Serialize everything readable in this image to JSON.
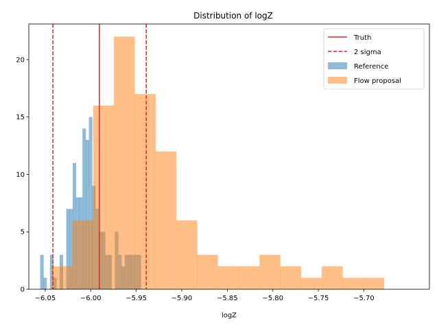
{
  "chart_data": {
    "type": "histogram",
    "title": "Distribution of logZ",
    "xlabel": "logZ",
    "ylabel": "",
    "xlim": [
      -6.068,
      -5.628
    ],
    "ylim": [
      0,
      23.1
    ],
    "xticks": [
      -6.05,
      -6.0,
      -5.95,
      -5.9,
      -5.85,
      -5.8,
      -5.75,
      -5.7
    ],
    "xtick_labels": [
      "−6.05",
      "−6.00",
      "−5.95",
      "−5.90",
      "−5.85",
      "−5.80",
      "−5.75",
      "−5.70"
    ],
    "yticks": [
      0,
      5,
      10,
      15,
      20
    ],
    "ytick_labels": [
      "0",
      "5",
      "10",
      "15",
      "20"
    ],
    "grid": false,
    "legend_position": "top-right",
    "legend": [
      {
        "label": "Truth",
        "kind": "solid-line",
        "color": "#d62728"
      },
      {
        "label": "2 sigma",
        "kind": "dashed-line",
        "color": "#d62728"
      },
      {
        "label": "Reference",
        "kind": "patch",
        "color": "#1f77b4"
      },
      {
        "label": "Flow proposal",
        "kind": "patch",
        "color": "#ff7f0e"
      }
    ],
    "series": [
      {
        "name": "Reference",
        "color": "#1f77b4",
        "alpha": 0.5,
        "bin_edges": [
          -6.0555,
          -6.0519,
          -6.0484,
          -6.0448,
          -6.0412,
          -6.0377,
          -6.0341,
          -6.0305,
          -6.0269,
          -6.0234,
          -6.0198,
          -6.0162,
          -6.0127,
          -6.0091,
          -6.0055,
          -6.002,
          -5.9984,
          -5.9948,
          -5.9912,
          -5.9877,
          -5.9841,
          -5.9805,
          -5.977,
          -5.9734,
          -5.9698,
          -5.9663,
          -5.9627,
          -5.9591,
          -5.9555,
          -5.952,
          -5.9484,
          -5.9448
        ],
        "counts": [
          3,
          1,
          0,
          3,
          1,
          0,
          3,
          0,
          7,
          7,
          11,
          8,
          8,
          14,
          13,
          15,
          9,
          7,
          5,
          5,
          3,
          3,
          0,
          5,
          3,
          2,
          3,
          3,
          3,
          3,
          3
        ]
      },
      {
        "name": "Flow proposal",
        "color": "#ff7f0e",
        "alpha": 0.5,
        "bin_edges": [
          -6.043,
          -6.0202,
          -5.9973,
          -5.9745,
          -5.9517,
          -5.9288,
          -5.906,
          -5.8832,
          -5.8604,
          -5.8375,
          -5.8147,
          -5.7919,
          -5.769,
          -5.7462,
          -5.7234,
          -5.7005,
          -5.6777
        ],
        "counts": [
          2,
          6,
          16,
          22,
          17,
          12,
          6,
          3,
          2,
          2,
          3,
          2,
          1,
          2,
          1,
          1
        ]
      }
    ],
    "vlines": [
      {
        "label": "Truth",
        "x": -5.9905,
        "color": "#d62728",
        "style": "solid"
      },
      {
        "label": "2 sigma",
        "x": -6.0415,
        "color": "#d62728",
        "style": "dashed"
      },
      {
        "label": "2 sigma",
        "x": -5.939,
        "color": "#d62728",
        "style": "dashed"
      }
    ]
  }
}
